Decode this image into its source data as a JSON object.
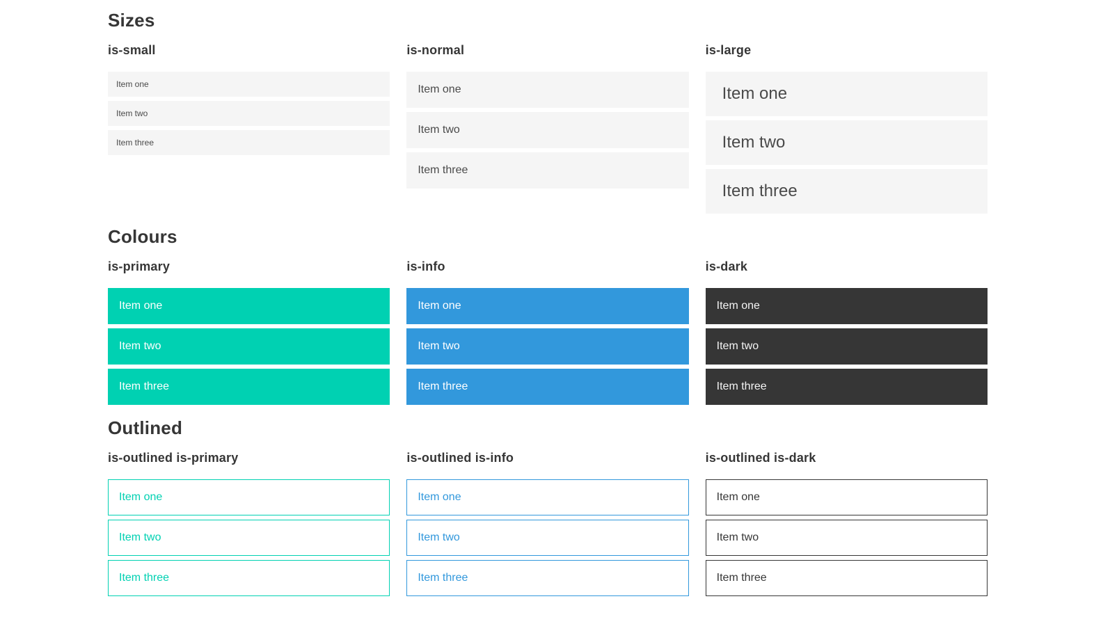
{
  "colors": {
    "primary": "#00d1b2",
    "info": "#3298dc",
    "dark": "#363636",
    "item_background": "#f5f5f5",
    "item_text": "#4a4a4a",
    "heading_text": "#363636",
    "light_text": "#ffffff",
    "dark_item_text": "#f5f5f5",
    "page_background": "#ffffff"
  },
  "sections": [
    {
      "title": "Sizes",
      "groups": [
        {
          "heading": "is-small",
          "items": [
            "Item one",
            "Item two",
            "Item three"
          ]
        },
        {
          "heading": "is-normal",
          "items": [
            "Item one",
            "Item two",
            "Item three"
          ]
        },
        {
          "heading": "is-large",
          "items": [
            "Item one",
            "Item two",
            "Item three"
          ]
        }
      ]
    },
    {
      "title": "Colours",
      "groups": [
        {
          "heading": "is-primary",
          "items": [
            "Item one",
            "Item two",
            "Item three"
          ]
        },
        {
          "heading": "is-info",
          "items": [
            "Item one",
            "Item two",
            "Item three"
          ]
        },
        {
          "heading": "is-dark",
          "items": [
            "Item one",
            "Item two",
            "Item three"
          ]
        }
      ]
    },
    {
      "title": "Outlined",
      "groups": [
        {
          "heading": "is-outlined is-primary",
          "items": [
            "Item one",
            "Item two",
            "Item three"
          ]
        },
        {
          "heading": "is-outlined is-info",
          "items": [
            "Item one",
            "Item two",
            "Item three"
          ]
        },
        {
          "heading": "is-outlined is-dark",
          "items": [
            "Item one",
            "Item two",
            "Item three"
          ]
        }
      ]
    }
  ]
}
